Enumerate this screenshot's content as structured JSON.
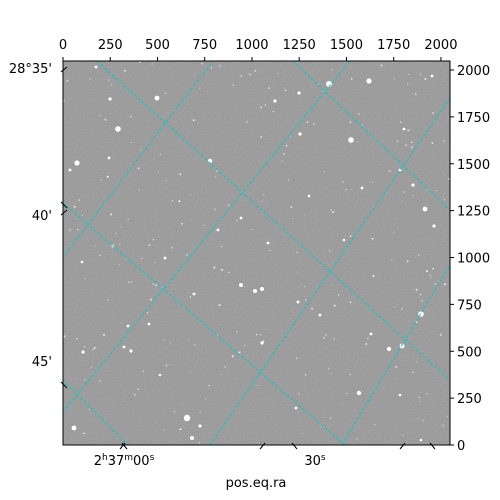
{
  "chart_data": {
    "type": "image",
    "xlabel": "pos.eq.ra",
    "ylabel": "",
    "pixel_axes": {
      "x_range": [
        0,
        2048
      ],
      "y_range": [
        0,
        2048
      ],
      "x_ticks_top": [
        "0",
        "250",
        "500",
        "750",
        "1000",
        "1250",
        "1500",
        "1750",
        "2000"
      ],
      "y_ticks_right": [
        "0",
        "250",
        "500",
        "750",
        "1000",
        "1250",
        "1500",
        "1750",
        "2000"
      ]
    },
    "world_axes": {
      "dec_ticks_left": [
        "28°35'",
        "40'",
        "45'"
      ],
      "ra_ticks_bottom": [
        {
          "h": "2",
          "m": "37",
          "s": "00",
          "sup_h": "h",
          "sup_m": "m",
          "sup_s": "s"
        },
        {
          "s": "30",
          "sup_s": "s"
        }
      ]
    },
    "grid": true,
    "grid_color": "#00c8c8",
    "background_color": "#7a7a7a",
    "frame_color": "#000000"
  }
}
